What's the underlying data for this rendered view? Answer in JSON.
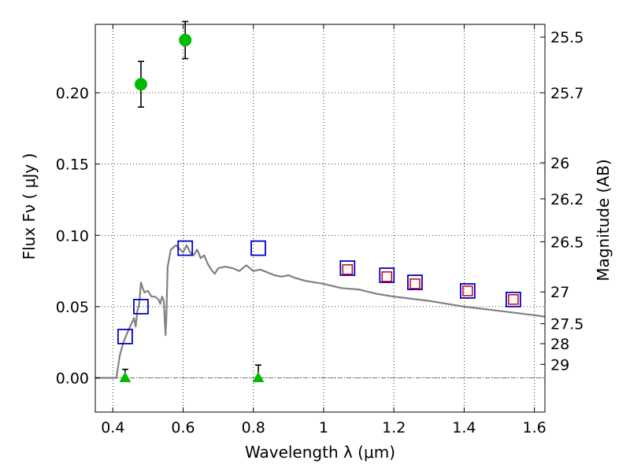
{
  "chart_data": {
    "type": "scatter",
    "xlabel": "Wavelength  λ (μm)",
    "ylabel_left": "Flux  Fν  ( μJy )",
    "ylabel_right": "Magnitude (AB)",
    "xlim": [
      0.35,
      1.63
    ],
    "ylim": [
      -0.024,
      0.248
    ],
    "grid": true,
    "x_ticks": [
      {
        "value": 0.4,
        "label": "0.4"
      },
      {
        "value": 0.6,
        "label": "0.6"
      },
      {
        "value": 0.8,
        "label": "0.8"
      },
      {
        "value": 1.0,
        "label": "1"
      },
      {
        "value": 1.2,
        "label": "1.2"
      },
      {
        "value": 1.4,
        "label": "1.4"
      },
      {
        "value": 1.6,
        "label": "1.6"
      }
    ],
    "y_ticks": [
      {
        "value": 0.0,
        "label": "0.00"
      },
      {
        "value": 0.05,
        "label": "0.05"
      },
      {
        "value": 0.1,
        "label": "0.10"
      },
      {
        "value": 0.15,
        "label": "0.15"
      },
      {
        "value": 0.2,
        "label": "0.20"
      }
    ],
    "mag_ticks": [
      {
        "value": 0.2391,
        "label": "25.5"
      },
      {
        "value": 0.2,
        "label": "25.7"
      },
      {
        "value": 0.1509,
        "label": "26"
      },
      {
        "value": 0.1256,
        "label": "26.2"
      },
      {
        "value": 0.0955,
        "label": "26.5"
      },
      {
        "value": 0.0603,
        "label": "27"
      },
      {
        "value": 0.038,
        "label": "27.5"
      },
      {
        "value": 0.024,
        "label": "28"
      },
      {
        "value": 0.0095,
        "label": "29"
      }
    ],
    "series": [
      {
        "name": "detections",
        "marker": "circle",
        "color": "#00bb00",
        "points": [
          {
            "x": 0.48,
            "y": 0.206,
            "err": 0.016
          },
          {
            "x": 0.606,
            "y": 0.237,
            "err": 0.013
          }
        ]
      },
      {
        "name": "upper-limits",
        "marker": "triangle",
        "color": "#00bb00",
        "points": [
          {
            "x": 0.435,
            "y": 0.0,
            "err_top": 0.006
          },
          {
            "x": 0.814,
            "y": 0.0,
            "err_top": 0.009
          }
        ]
      },
      {
        "name": "model-photometry",
        "marker": "square",
        "color": "#0000cc",
        "points": [
          {
            "x": 0.435,
            "y": 0.029
          },
          {
            "x": 0.48,
            "y": 0.05
          },
          {
            "x": 0.606,
            "y": 0.091
          },
          {
            "x": 0.814,
            "y": 0.091
          },
          {
            "x": 1.068,
            "y": 0.077
          },
          {
            "x": 1.18,
            "y": 0.072
          },
          {
            "x": 1.26,
            "y": 0.067
          },
          {
            "x": 1.41,
            "y": 0.061
          },
          {
            "x": 1.54,
            "y": 0.055
          }
        ]
      },
      {
        "name": "observed-nir",
        "marker": "small-square",
        "color": "#cc0000",
        "points": [
          {
            "x": 1.068,
            "y": 0.076
          },
          {
            "x": 1.18,
            "y": 0.071
          },
          {
            "x": 1.26,
            "y": 0.066
          },
          {
            "x": 1.41,
            "y": 0.061
          },
          {
            "x": 1.54,
            "y": 0.055
          }
        ]
      },
      {
        "name": "model-sed",
        "type": "line",
        "color": "#808080",
        "x": [
          0.35,
          0.41,
          0.415,
          0.42,
          0.43,
          0.445,
          0.455,
          0.46,
          0.465,
          0.47,
          0.475,
          0.48,
          0.485,
          0.49,
          0.5,
          0.51,
          0.52,
          0.53,
          0.535,
          0.54,
          0.545,
          0.55,
          0.552,
          0.556,
          0.565,
          0.58,
          0.6,
          0.61,
          0.62,
          0.63,
          0.64,
          0.65,
          0.66,
          0.67,
          0.68,
          0.69,
          0.7,
          0.72,
          0.74,
          0.76,
          0.78,
          0.8,
          0.82,
          0.84,
          0.86,
          0.88,
          0.9,
          0.92,
          0.95,
          1.0,
          1.05,
          1.1,
          1.15,
          1.2,
          1.3,
          1.4,
          1.5,
          1.6,
          1.63
        ],
        "y": [
          0.0,
          0.0,
          0.008,
          0.016,
          0.025,
          0.034,
          0.039,
          0.042,
          0.036,
          0.047,
          0.052,
          0.067,
          0.063,
          0.06,
          0.061,
          0.057,
          0.057,
          0.055,
          0.052,
          0.057,
          0.054,
          0.03,
          0.04,
          0.078,
          0.09,
          0.093,
          0.088,
          0.093,
          0.088,
          0.086,
          0.09,
          0.084,
          0.086,
          0.08,
          0.076,
          0.073,
          0.077,
          0.078,
          0.077,
          0.075,
          0.079,
          0.075,
          0.076,
          0.074,
          0.072,
          0.071,
          0.072,
          0.07,
          0.068,
          0.066,
          0.063,
          0.062,
          0.059,
          0.057,
          0.054,
          0.05,
          0.047,
          0.044,
          0.043
        ]
      }
    ]
  }
}
